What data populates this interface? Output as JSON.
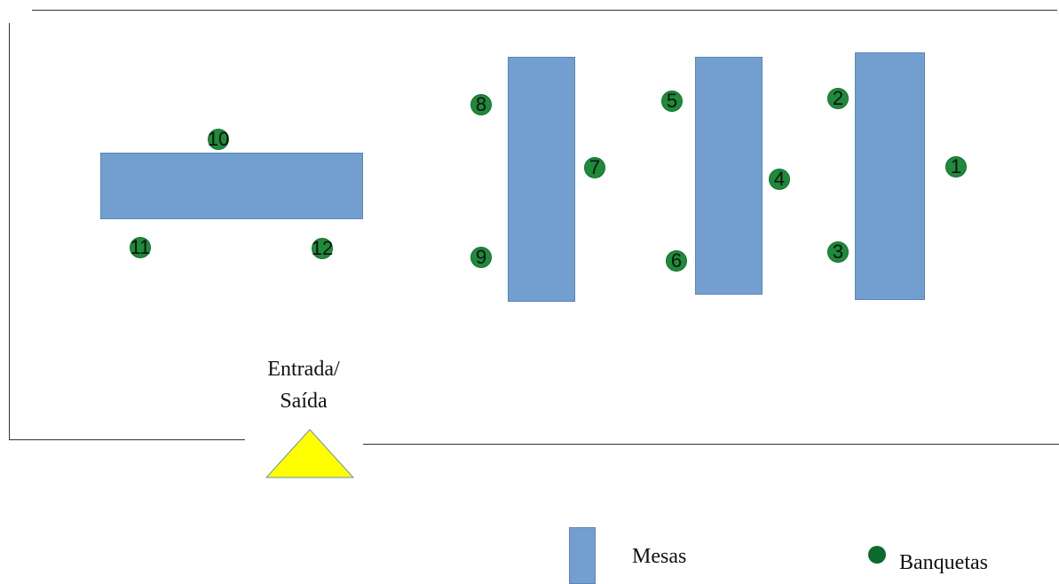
{
  "colors": {
    "table": "#729fcf",
    "stool": "#1e8a3a",
    "entrance": "#ffff00",
    "wall": "#333333"
  },
  "entrance": {
    "label_line1": "Entrada/",
    "label_line2": "Saída"
  },
  "stools": {
    "s1": "1",
    "s2": "2",
    "s3": "3",
    "s4": "4",
    "s5": "5",
    "s6": "6",
    "s7": "7",
    "s8": "8",
    "s9": "9",
    "s10": "10",
    "s11": "11",
    "s12": "12"
  },
  "legend": {
    "tables_label": "Mesas",
    "stools_label": "Banquetas"
  }
}
